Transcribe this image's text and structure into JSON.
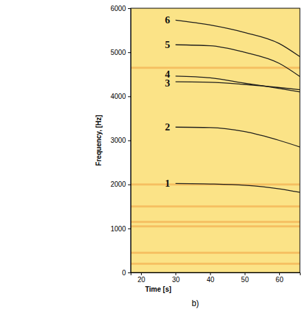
{
  "chart_data": {
    "type": "line",
    "title": "b)",
    "x_label": "Time [s]",
    "y_label": "Frequency, [Hz]",
    "x": [
      30,
      40,
      50,
      60,
      66
    ],
    "series": [
      {
        "name": "1",
        "color": "#1a1a1a",
        "values": [
          2020,
          2010,
          1980,
          1900,
          1820
        ]
      },
      {
        "name": "2",
        "color": "#1a1a1a",
        "values": [
          3300,
          3290,
          3200,
          3000,
          2850
        ]
      },
      {
        "name": "3",
        "color": "#1a1a1a",
        "values": [
          4330,
          4320,
          4270,
          4200,
          4150
        ]
      },
      {
        "name": "4",
        "color": "#1a1a1a",
        "values": [
          4460,
          4420,
          4300,
          4180,
          4100
        ]
      },
      {
        "name": "5",
        "color": "#1a1a1a",
        "values": [
          5170,
          5150,
          5000,
          4750,
          4450
        ]
      },
      {
        "name": "6",
        "color": "#1a1a1a",
        "values": [
          5730,
          5620,
          5450,
          5200,
          4900
        ]
      }
    ],
    "bands": [
      200,
      450,
      1050,
      1150,
      1500,
      2000,
      4650
    ],
    "xlim": [
      17,
      66
    ],
    "ylim": [
      0,
      6000
    ],
    "xticks": [
      20,
      30,
      40,
      50,
      60
    ],
    "yticks": [
      0,
      1000,
      2000,
      3000,
      4000,
      5000,
      6000
    ],
    "grid": false
  }
}
